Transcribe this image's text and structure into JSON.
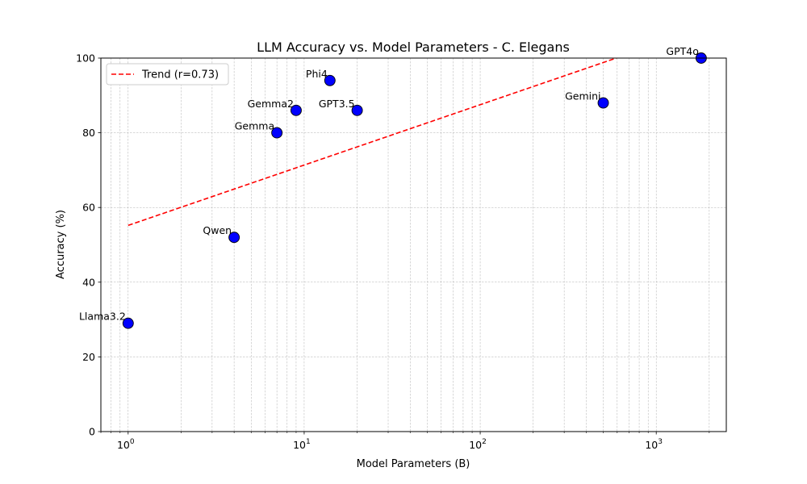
{
  "chart_data": {
    "type": "scatter",
    "title": "LLM Accuracy vs. Model Parameters - C. Elegans",
    "xlabel": "Model Parameters (B)",
    "ylabel": "Accuracy (%)",
    "xscale": "log",
    "xlim": [
      0.7,
      2500
    ],
    "ylim": [
      0,
      100
    ],
    "yticks": [
      "0",
      "20",
      "40",
      "60",
      "80",
      "100"
    ],
    "xticks": [
      {
        "base": "10",
        "exp": "0"
      },
      {
        "base": "10",
        "exp": "1"
      },
      {
        "base": "10",
        "exp": "2"
      },
      {
        "base": "10",
        "exp": "3"
      }
    ],
    "grid": true,
    "legend_placement": "top-left",
    "point_color": "#0000ff",
    "trend_color": "#ff0000",
    "points": [
      {
        "label": "Llama3.2",
        "x": 1,
        "y": 29
      },
      {
        "label": "Qwen",
        "x": 4,
        "y": 52
      },
      {
        "label": "Gemma",
        "x": 7,
        "y": 80
      },
      {
        "label": "Gemma2",
        "x": 9,
        "y": 86
      },
      {
        "label": "Phi4",
        "x": 14,
        "y": 94
      },
      {
        "label": "GPT3.5",
        "x": 20,
        "y": 86
      },
      {
        "label": "Gemini",
        "x": 500,
        "y": 88
      },
      {
        "label": "GPT4o",
        "x": 1800,
        "y": 100
      }
    ],
    "trend": {
      "name": "Trend (r=0.73)",
      "x": [
        1,
        1800
      ],
      "y": [
        55.2,
        107.8
      ]
    }
  }
}
